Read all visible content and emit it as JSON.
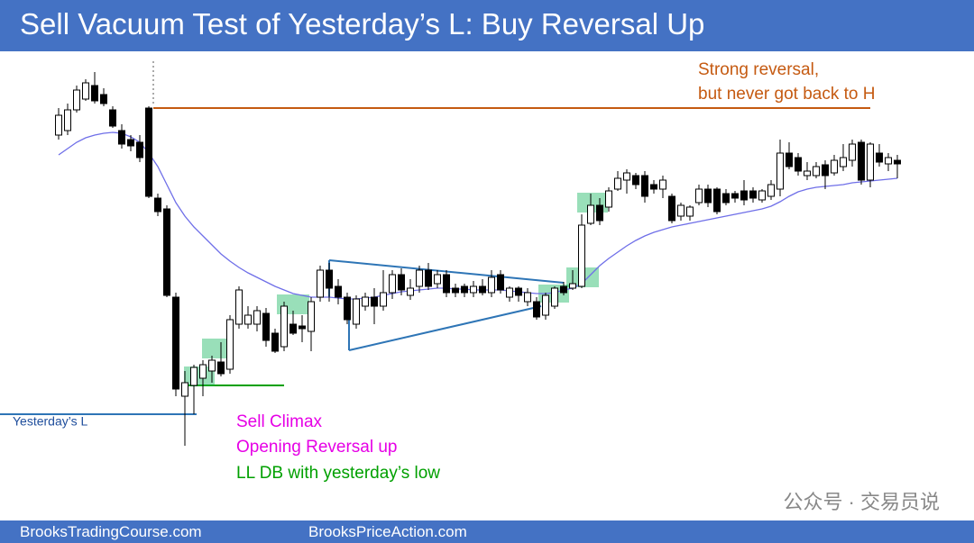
{
  "header": {
    "title": "Sell Vacuum Test of Yesterday’s L: Buy Reversal Up"
  },
  "chart_data": {
    "type": "candlestick",
    "ylim": [
      0,
      450
    ],
    "open": [
      350,
      355,
      378,
      390,
      405,
      395,
      378,
      355,
      345,
      342,
      380,
      280,
      268,
      170,
      60,
      72,
      80,
      88,
      98,
      90,
      140,
      140,
      140,
      152,
      130,
      115,
      140,
      138,
      132,
      170,
      200,
      182,
      170,
      140,
      160,
      170,
      160,
      175,
      195,
      172,
      182,
      200,
      185,
      195,
      180,
      182,
      175,
      182,
      175,
      195,
      170,
      180,
      165,
      165,
      150,
      160,
      182,
      180,
      182,
      252,
      272,
      270,
      290,
      300,
      305,
      305,
      295,
      290,
      282,
      260,
      260,
      275,
      290,
      290,
      285,
      285,
      288,
      288,
      278,
      282,
      290,
      330,
      325,
      305,
      305,
      317,
      308,
      315,
      322,
      342,
      300,
      330,
      318,
      322
    ],
    "high": [
      380,
      385,
      405,
      412,
      420,
      402,
      382,
      362,
      350,
      350,
      382,
      285,
      272,
      175,
      88,
      95,
      100,
      105,
      120,
      150,
      182,
      160,
      160,
      158,
      135,
      165,
      155,
      150,
      170,
      205,
      208,
      190,
      175,
      172,
      175,
      180,
      200,
      200,
      202,
      190,
      205,
      208,
      200,
      200,
      185,
      185,
      188,
      190,
      200,
      200,
      182,
      182,
      180,
      170,
      175,
      182,
      187,
      200,
      262,
      285,
      280,
      292,
      310,
      312,
      308,
      310,
      300,
      305,
      285,
      275,
      272,
      295,
      295,
      292,
      290,
      288,
      300,
      292,
      290,
      300,
      345,
      342,
      330,
      320,
      320,
      322,
      328,
      340,
      345,
      345,
      342,
      340,
      330,
      328
    ],
    "low": [
      345,
      350,
      375,
      388,
      385,
      382,
      358,
      335,
      332,
      320,
      280,
      260,
      170,
      60,
      5,
      40,
      60,
      75,
      82,
      85,
      135,
      135,
      132,
      115,
      108,
      110,
      128,
      120,
      110,
      165,
      165,
      162,
      140,
      135,
      155,
      140,
      155,
      168,
      172,
      167,
      175,
      178,
      180,
      170,
      170,
      170,
      170,
      172,
      170,
      174,
      165,
      165,
      160,
      145,
      145,
      157,
      172,
      178,
      180,
      250,
      250,
      265,
      288,
      285,
      290,
      275,
      285,
      280,
      252,
      255,
      255,
      272,
      270,
      262,
      272,
      275,
      272,
      275,
      275,
      278,
      282,
      312,
      305,
      300,
      302,
      290,
      305,
      310,
      315,
      295,
      292,
      315,
      310,
      302
    ],
    "close": [
      372,
      378,
      400,
      408,
      388,
      385,
      360,
      340,
      338,
      325,
      282,
      265,
      172,
      68,
      75,
      92,
      95,
      100,
      85,
      145,
      178,
      150,
      155,
      122,
      110,
      160,
      130,
      135,
      165,
      200,
      180,
      170,
      145,
      168,
      170,
      160,
      175,
      195,
      178,
      180,
      200,
      182,
      195,
      175,
      175,
      175,
      182,
      175,
      192,
      178,
      180,
      172,
      175,
      148,
      172,
      180,
      175,
      185,
      250,
      272,
      255,
      288,
      302,
      308,
      295,
      282,
      290,
      300,
      255,
      272,
      270,
      290,
      275,
      265,
      275,
      280,
      278,
      280,
      288,
      295,
      330,
      315,
      310,
      310,
      315,
      305,
      322,
      325,
      340,
      300,
      340,
      320,
      325,
      318
    ],
    "ma": {
      "color": "#6f6fe8",
      "values": [
        328,
        335,
        342,
        347,
        350,
        352,
        353,
        352,
        348,
        342,
        330,
        315,
        295,
        275,
        260,
        248,
        238,
        228,
        218,
        210,
        203,
        197,
        192,
        187,
        182,
        178,
        174,
        172,
        170,
        170,
        170,
        169,
        168,
        168,
        169,
        170,
        172,
        174,
        176,
        177,
        178,
        179,
        180,
        180,
        179,
        179,
        178,
        178,
        178,
        178,
        177,
        176,
        175,
        174,
        174,
        175,
        178,
        180,
        185,
        195,
        205,
        213,
        220,
        227,
        233,
        238,
        242,
        245,
        248,
        250,
        252,
        254,
        256,
        258,
        260,
        262,
        264,
        266,
        268,
        271,
        276,
        282,
        287,
        290,
        292,
        293,
        294,
        295,
        297,
        298,
        299,
        300,
        301,
        302
      ]
    }
  },
  "annotations": {
    "strong_1": "Strong reversal,",
    "strong_2": "but never got back to H",
    "yesterday_low": "Yesterday’s L",
    "sell_climax": "Sell Climax",
    "opening_reversal": "Opening Reversal up",
    "ll_db": "LL DB with yesterday’s low",
    "watermark": "公众号 · 交易员说"
  },
  "footer": {
    "left": "BrooksTradingCourse.com",
    "right": "BrooksPriceAction.com"
  }
}
